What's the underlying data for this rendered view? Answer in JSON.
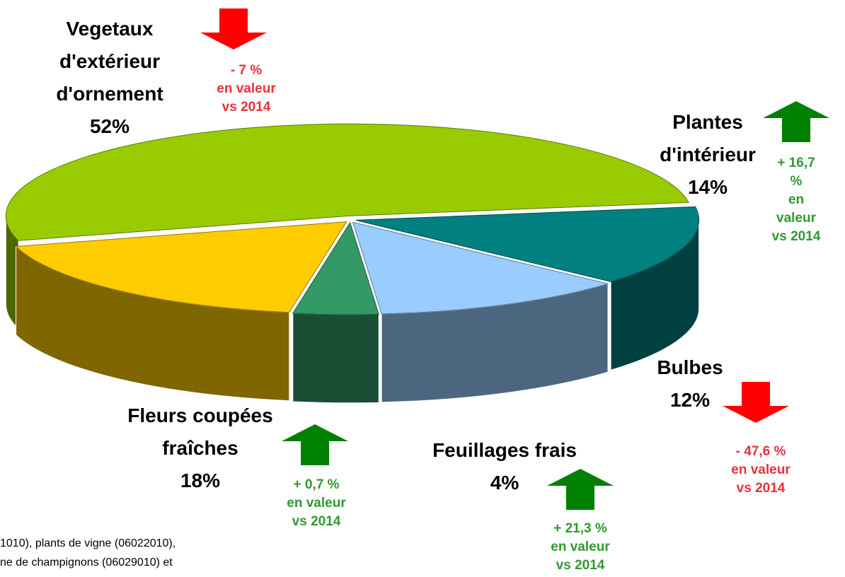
{
  "chart_data": {
    "type": "pie",
    "categories": [
      "Vegetaux\nd'extérieur\nd'ornement",
      "Plantes\nd'intérieur",
      "Bulbes",
      "Feuillages frais",
      "Fleurs coupées\nfraîches"
    ],
    "values": [
      52,
      14,
      12,
      4,
      18
    ],
    "value_labels": [
      "52%",
      "14%",
      "12%",
      "4%",
      "18%"
    ],
    "colors": [
      "#99cc00",
      "#008080",
      "#99ccff",
      "#339966",
      "#ffcc00"
    ],
    "changes": [
      -7,
      16.7,
      -47.6,
      21.3,
      0.7
    ],
    "change_labels": [
      "- 7 %",
      "+ 16,7 %",
      "- 47,6 %",
      "+ 21,3 %",
      "+ 0,7 %"
    ],
    "change_note": "en valeur\nvs 2014",
    "up_color": "#008000",
    "down_color": "#ff0000",
    "up_text_color": "#2e9a2e",
    "down_text_color": "#e8313a",
    "footnote": [
      "1010), plants de vigne (06022010),",
      "ne de champignons (06029010) et"
    ]
  }
}
